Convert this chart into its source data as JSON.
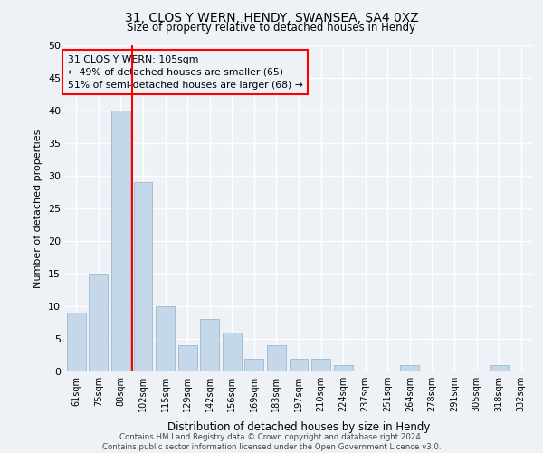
{
  "title1": "31, CLOS Y WERN, HENDY, SWANSEA, SA4 0XZ",
  "title2": "Size of property relative to detached houses in Hendy",
  "xlabel": "Distribution of detached houses by size in Hendy",
  "ylabel": "Number of detached properties",
  "bar_labels": [
    "61sqm",
    "75sqm",
    "88sqm",
    "102sqm",
    "115sqm",
    "129sqm",
    "142sqm",
    "156sqm",
    "169sqm",
    "183sqm",
    "197sqm",
    "210sqm",
    "224sqm",
    "237sqm",
    "251sqm",
    "264sqm",
    "278sqm",
    "291sqm",
    "305sqm",
    "318sqm",
    "332sqm"
  ],
  "bar_values": [
    9,
    15,
    40,
    29,
    10,
    4,
    8,
    6,
    2,
    4,
    2,
    2,
    1,
    0,
    0,
    1,
    0,
    0,
    0,
    1,
    0
  ],
  "bar_color": "#c5d8ea",
  "bar_edge_color": "#9ab8cc",
  "vline_x": 2.5,
  "vline_color": "red",
  "annotation_text": "31 CLOS Y WERN: 105sqm\n← 49% of detached houses are smaller (65)\n51% of semi-detached houses are larger (68) →",
  "annotation_box_color": "red",
  "ylim": [
    0,
    50
  ],
  "yticks": [
    0,
    5,
    10,
    15,
    20,
    25,
    30,
    35,
    40,
    45,
    50
  ],
  "bg_color": "#eef2f7",
  "grid_color": "#ffffff",
  "footer": "Contains HM Land Registry data © Crown copyright and database right 2024.\nContains public sector information licensed under the Open Government Licence v3.0."
}
